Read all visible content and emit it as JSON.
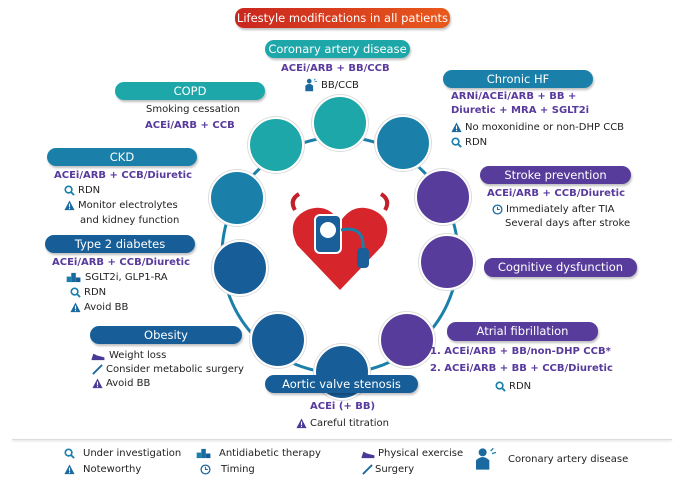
{
  "banner": "Lifestyle modifications in all patients",
  "colors": {
    "teal": "#1ea7a9",
    "blue": "#1a80aa",
    "navy": "#175e98",
    "purple": "#573c9c",
    "red": "#d6262b",
    "drug_text": "#583a9c"
  },
  "cad": {
    "title": "Coronary artery disease",
    "drugs": "ACEi/ARB + BB/CCB",
    "note": "BB/CCB"
  },
  "copd": {
    "title": "COPD",
    "line1": "Smoking cessation",
    "drugs": "ACEi/ARB + CCB"
  },
  "ckd": {
    "title": "CKD",
    "drugs": "ACEi/ARB + CCB/Diuretic",
    "rdn": "RDN",
    "warn1": "Monitor electrolytes",
    "warn2": "and kidney function"
  },
  "t2d": {
    "title": "Type 2 diabetes",
    "drugs": "ACEi/ARB + CCB/Diuretic",
    "anti": "SGLT2i, GLP1-RA",
    "rdn": "RDN",
    "warn": "Avoid BB"
  },
  "obesity": {
    "title": "Obesity",
    "exercise": "Weight loss",
    "surgery": "Consider metabolic surgery",
    "warn": "Avoid BB"
  },
  "aortic": {
    "title": "Aortic valve stenosis",
    "drugs": "ACEi (+ BB)",
    "warn": "Careful titration"
  },
  "af": {
    "title": "Atrial fibrillation",
    "drugs1": "1. ACEi/ARB + BB/non-DHP CCB*",
    "drugs2": "2. ACEi/ARB + BB + CCB/Diuretic",
    "rdn": "RDN"
  },
  "cognitive": {
    "title": "Cognitive dysfunction"
  },
  "stroke": {
    "title": "Stroke prevention",
    "drugs": "ACEi/ARB + CCB/Diuretic",
    "timing1": "Immediately after TIA",
    "timing2": "Several days after stroke"
  },
  "hf": {
    "title": "Chronic HF",
    "drugs1": "ARNi/ACEi/ARB + BB +",
    "drugs2": "Diuretic + MRA + SGLT2i",
    "warn": "No moxonidine or non-DHP CCB",
    "rdn": "RDN"
  },
  "legend": {
    "investigation": "Under investigation",
    "noteworthy": "Noteworthy",
    "antidiabetic": "Antidiabetic therapy",
    "timing": "Timing",
    "exercise": "Physical exercise",
    "surgery": "Surgery",
    "cad": "Coronary artery disease"
  }
}
